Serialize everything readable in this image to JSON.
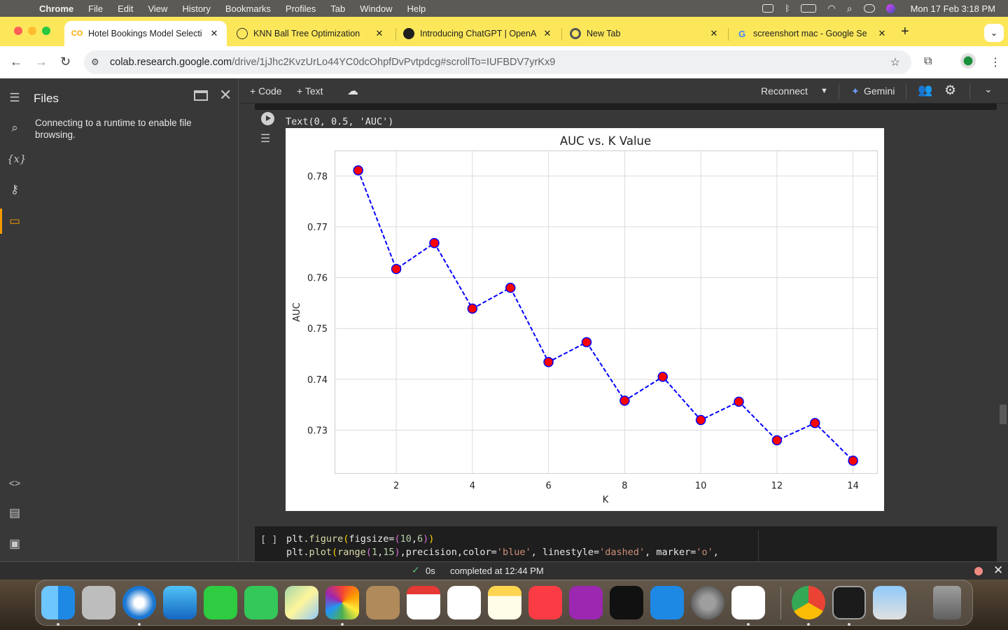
{
  "menubar": {
    "items": [
      "Chrome",
      "File",
      "Edit",
      "View",
      "History",
      "Bookmarks",
      "Profiles",
      "Tab",
      "Window",
      "Help"
    ],
    "clock": "Mon 17 Feb  3:18 PM"
  },
  "browser": {
    "tabs": [
      {
        "title": "Hotel Bookings Model Selecti",
        "favicon": "colab-icon",
        "active": true
      },
      {
        "title": "KNN Ball Tree Optimization",
        "favicon": "chatgpt-icon",
        "active": false
      },
      {
        "title": "Introducing ChatGPT | OpenA",
        "favicon": "openai-icon",
        "active": false
      },
      {
        "title": "New Tab",
        "favicon": "chrome-icon",
        "active": false
      },
      {
        "title": "screenshort mac - Google Se",
        "favicon": "google-icon",
        "active": false
      }
    ],
    "url_host": "colab.research.google.com",
    "url_path": "/drive/1jJhc2KvzUrLo44YC0dcOhpfDvPvtpdcg#scrollTo=IUFBDV7yrKx9"
  },
  "colab": {
    "files_title": "Files",
    "files_message": "Connecting to a runtime to enable file browsing.",
    "toolbar": {
      "code_label": "+ Code",
      "text_label": "+ Text",
      "reconnect_label": "Reconnect",
      "gemini_label": "Gemini"
    },
    "output_text": "Text(0, 0.5, 'AUC')",
    "next_cell_bracket": "[ ]",
    "status_time": "0s",
    "status_text": "completed at 12:44 PM"
  },
  "chart_data": {
    "type": "line",
    "title": "AUC vs. K Value",
    "xlabel": "K",
    "ylabel": "AUC",
    "x": [
      1,
      2,
      3,
      4,
      5,
      6,
      7,
      8,
      9,
      10,
      11,
      12,
      13,
      14
    ],
    "values": [
      0.7811,
      0.7617,
      0.7668,
      0.7539,
      0.758,
      0.7434,
      0.7473,
      0.7358,
      0.7405,
      0.732,
      0.7356,
      0.728,
      0.7314,
      0.724
    ],
    "xlim": [
      0.38,
      14.65
    ],
    "ylim": [
      0.7214,
      0.785
    ],
    "xticks": [
      2,
      4,
      6,
      8,
      10,
      12,
      14
    ],
    "yticks": [
      0.73,
      0.74,
      0.75,
      0.76,
      0.77,
      0.78
    ],
    "ytick_labels": [
      "0.73",
      "0.74",
      "0.75",
      "0.76",
      "0.77",
      "0.78"
    ],
    "grid": true,
    "line_color": "#0000ff",
    "line_style": "dashed",
    "marker_color": "#ff0000"
  }
}
